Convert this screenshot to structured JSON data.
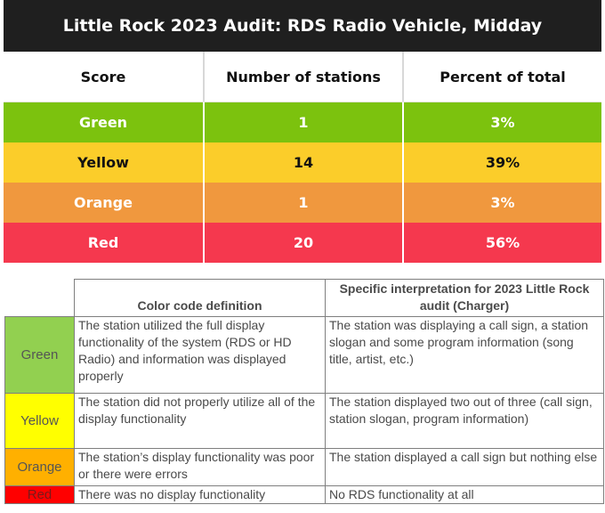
{
  "summary": {
    "title": "Little Rock 2023 Audit: RDS Radio Vehicle, Midday",
    "headers": [
      "Score",
      "Number of stations",
      "Percent of total"
    ],
    "rows": [
      {
        "score": "Green",
        "stations": "1",
        "percent": "3%",
        "color": "#7cc20e"
      },
      {
        "score": "Yellow",
        "stations": "14",
        "percent": "39%",
        "color": "#fbcd2a"
      },
      {
        "score": "Orange",
        "stations": "1",
        "percent": "3%",
        "color": "#f0983e"
      },
      {
        "score": "Red",
        "stations": "20",
        "percent": "56%",
        "color": "#f5384e"
      }
    ]
  },
  "definitions": {
    "headers": [
      "Color code definition",
      "Specific interpretation for 2023 Little Rock audit (Charger)"
    ],
    "rows": [
      {
        "label": "Green",
        "color": "#92d050",
        "definition": "The station utilized the full display functionality of the system (RDS or HD Radio) and information was displayed properly",
        "interpretation": "The station was displaying a call sign, a station slogan and some program information (song title, artist, etc.)"
      },
      {
        "label": "Yellow",
        "color": "#ffff00",
        "definition": "The station did not properly utilize all of the display functionality",
        "interpretation": "The station displayed two out of three (call sign, station slogan, program information)"
      },
      {
        "label": "Orange",
        "color": "#ffb000",
        "definition": "The station’s display functionality was poor or there were errors",
        "interpretation": "The station displayed a call sign but nothing else"
      },
      {
        "label": "Red",
        "color": "#ff0000",
        "definition": "There was no display functionality",
        "interpretation": "No RDS functionality at all"
      }
    ]
  }
}
